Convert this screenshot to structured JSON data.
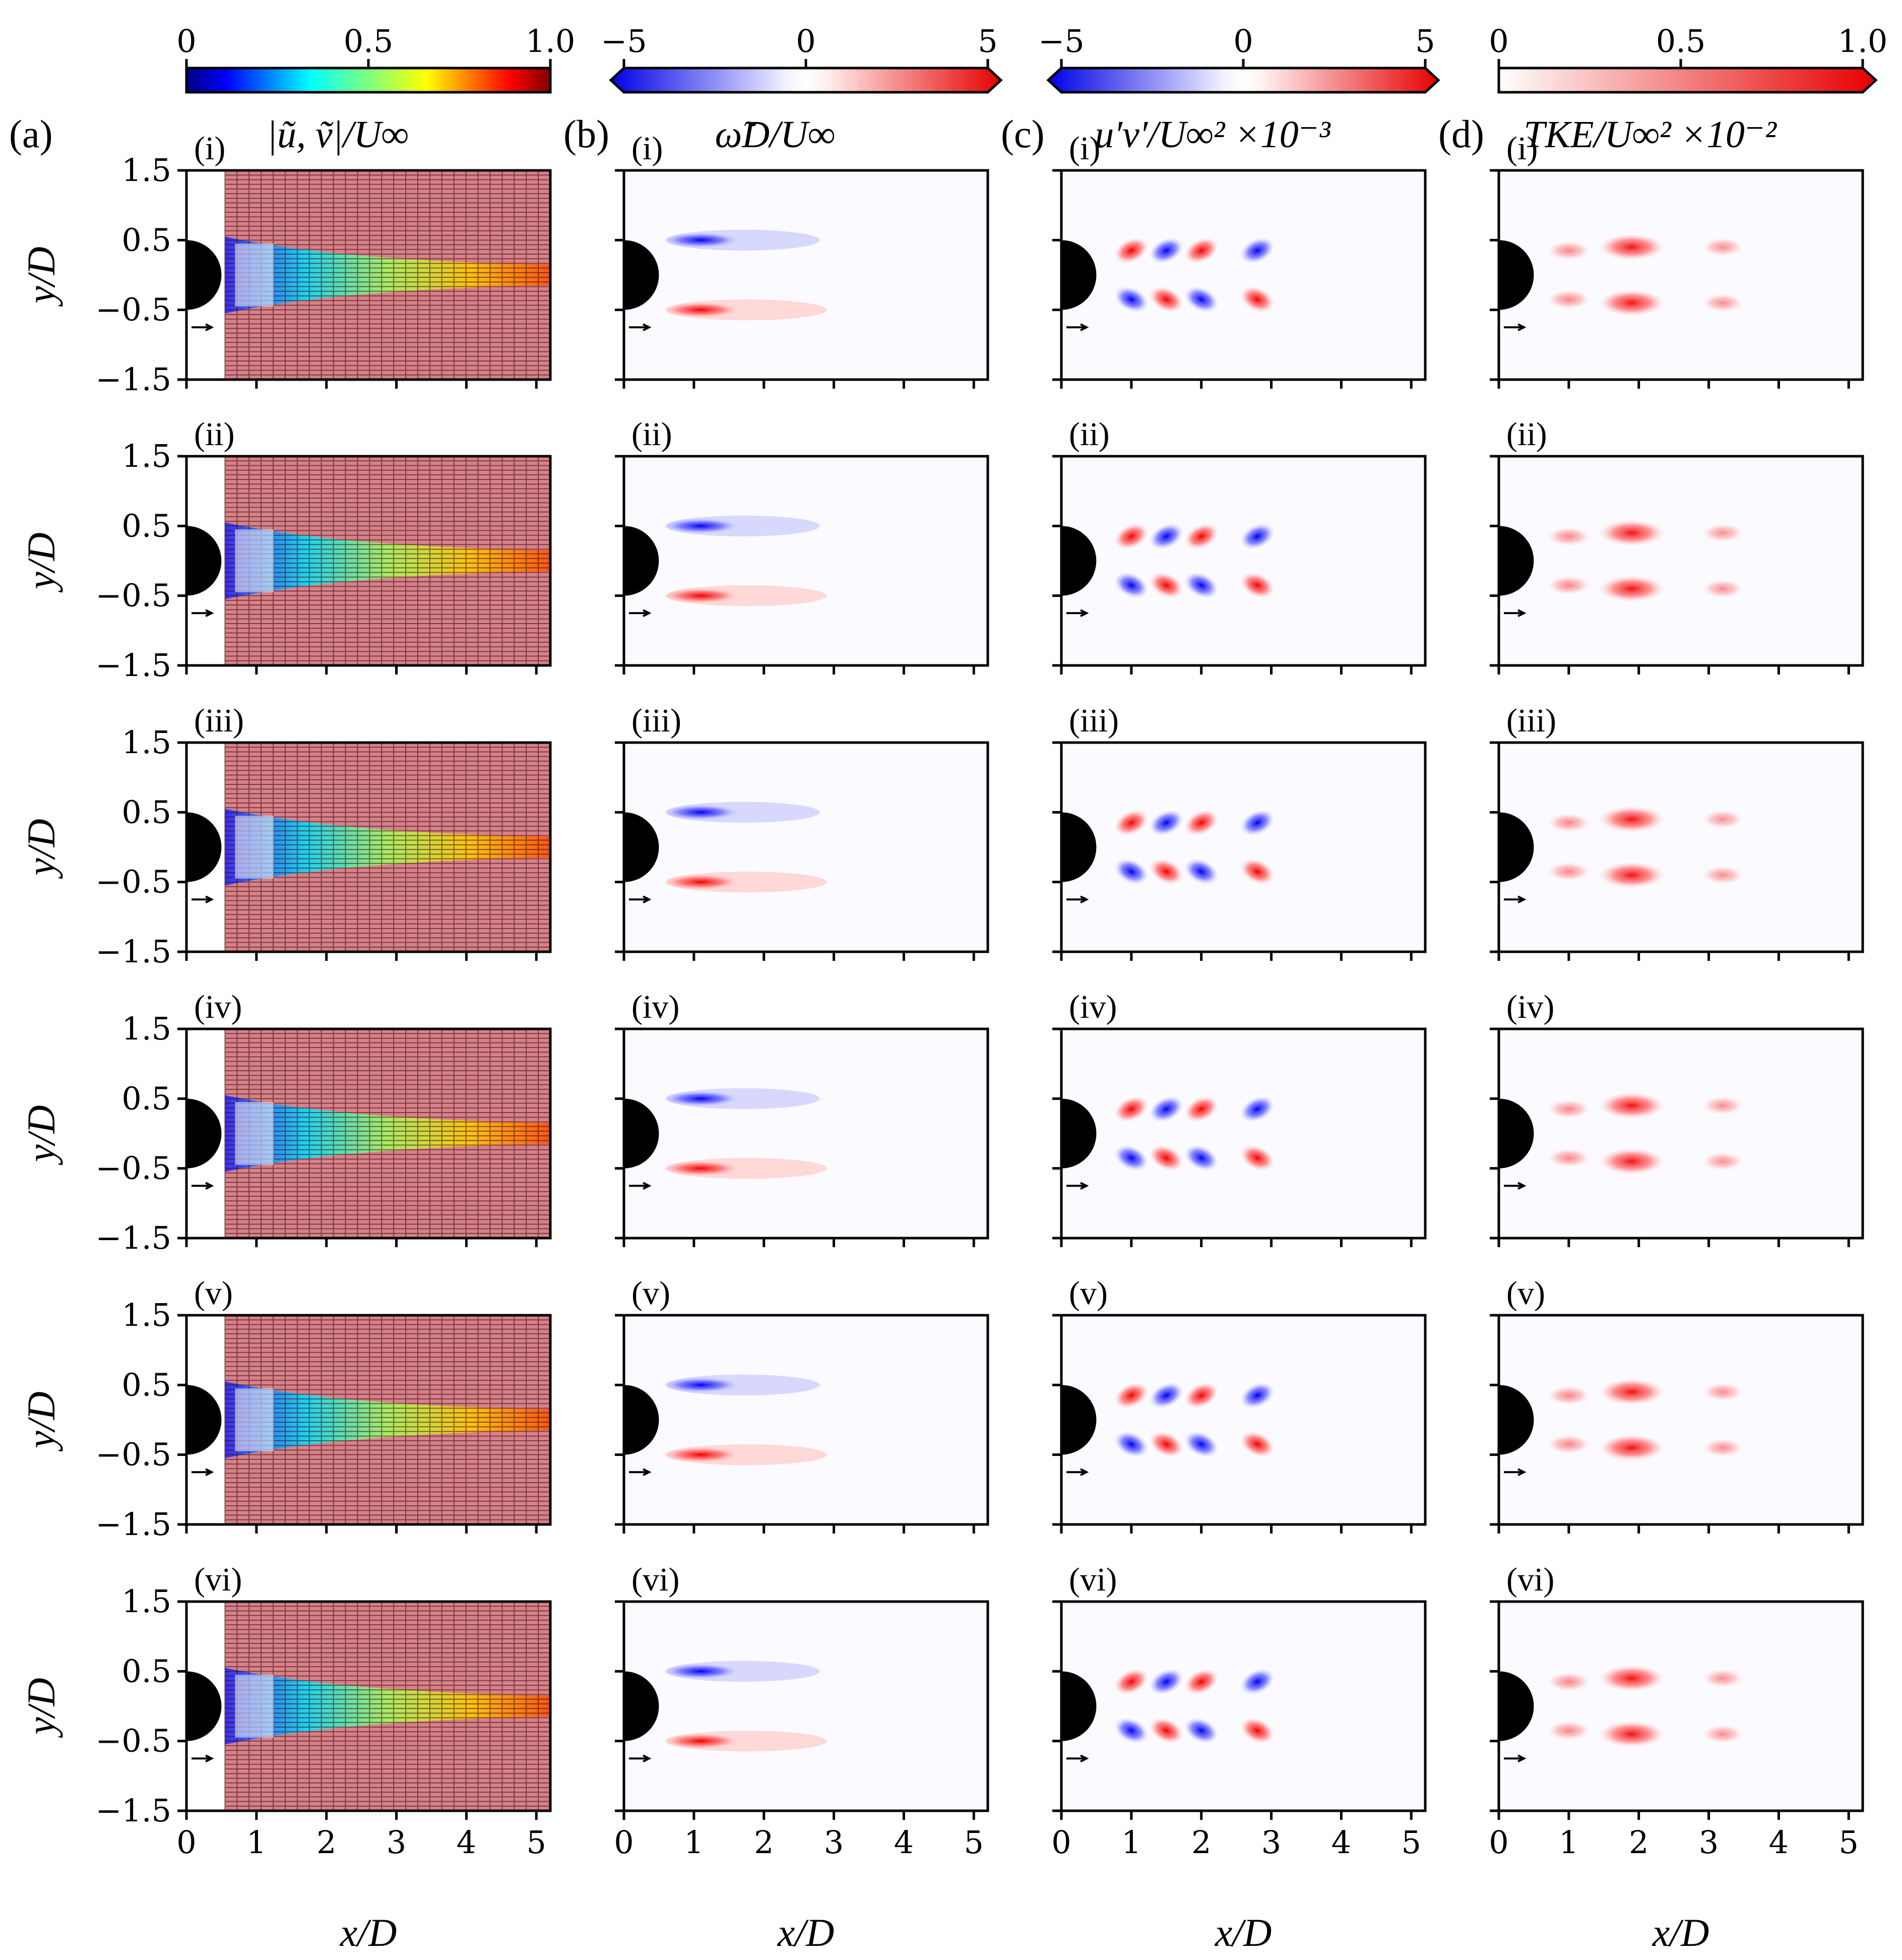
{
  "figure": {
    "columns": [
      {
        "letter": "(a)",
        "title": "|ũ, ṽ|/U∞",
        "colormap": "jet",
        "cbar_ticks": [
          "0",
          "0.5",
          "1.0"
        ],
        "cbar_range": [
          0,
          1.0
        ],
        "extend": false
      },
      {
        "letter": "(b)",
        "title": "ω̃D/U∞",
        "colormap": "bwr",
        "cbar_ticks": [
          "−5",
          "0",
          "5"
        ],
        "cbar_range": [
          -5,
          5
        ],
        "extend": true
      },
      {
        "letter": "(c)",
        "title": "u′v′/U∞² ×10⁻³",
        "colormap": "bwr",
        "cbar_ticks": [
          "−5",
          "0",
          "5"
        ],
        "cbar_range": [
          -5,
          5
        ],
        "extend": true
      },
      {
        "letter": "(d)",
        "title": "TKE/U∞² ×10⁻²",
        "colormap": "reds",
        "cbar_ticks": [
          "0",
          "0.5",
          "1.0"
        ],
        "cbar_range": [
          0,
          1.0
        ],
        "extend": true
      }
    ],
    "rows": [
      "(i)",
      "(ii)",
      "(iii)",
      "(iv)",
      "(v)",
      "(vi)"
    ],
    "ylabel": "y/D",
    "xlabel": "x/D",
    "xticks": [
      "0",
      "1",
      "2",
      "3",
      "4",
      "5"
    ],
    "yticks": [
      "1.5",
      "0.5",
      "−0.5",
      "−1.5"
    ]
  },
  "chart_data": {
    "type": "heatmap",
    "xlim": [
      0,
      5.2
    ],
    "ylim": [
      -1.5,
      1.5
    ],
    "cylinder_diameter": 1.0,
    "panels": "6 rows × 4 columns",
    "vorticity_shear_layers": [
      {
        "sign": -1,
        "y": 0.5,
        "x_start": 0.6,
        "x_end": 2.8
      },
      {
        "sign": 1,
        "y": -0.5,
        "x_start": 0.6,
        "x_end": 2.9
      }
    ],
    "reynolds_stress_blobs": [
      {
        "x": 1.0,
        "y": 0.35,
        "sign": 1
      },
      {
        "x": 1.5,
        "y": 0.35,
        "sign": -1
      },
      {
        "x": 2.0,
        "y": 0.35,
        "sign": 1
      },
      {
        "x": 2.8,
        "y": 0.35,
        "sign": -1
      },
      {
        "x": 1.0,
        "y": -0.35,
        "sign": -1
      },
      {
        "x": 1.5,
        "y": -0.35,
        "sign": 1
      },
      {
        "x": 2.0,
        "y": -0.35,
        "sign": -1
      },
      {
        "x": 2.8,
        "y": -0.35,
        "sign": 1
      }
    ],
    "tke_blobs": [
      {
        "x": 1.0,
        "y": 0.35,
        "level": 0.25
      },
      {
        "x": 1.9,
        "y": 0.4,
        "level": 0.9
      },
      {
        "x": 3.2,
        "y": 0.4,
        "level": 0.2
      },
      {
        "x": 1.0,
        "y": -0.35,
        "level": 0.25
      },
      {
        "x": 1.9,
        "y": -0.4,
        "level": 0.9
      },
      {
        "x": 3.2,
        "y": -0.4,
        "level": 0.2
      }
    ]
  }
}
